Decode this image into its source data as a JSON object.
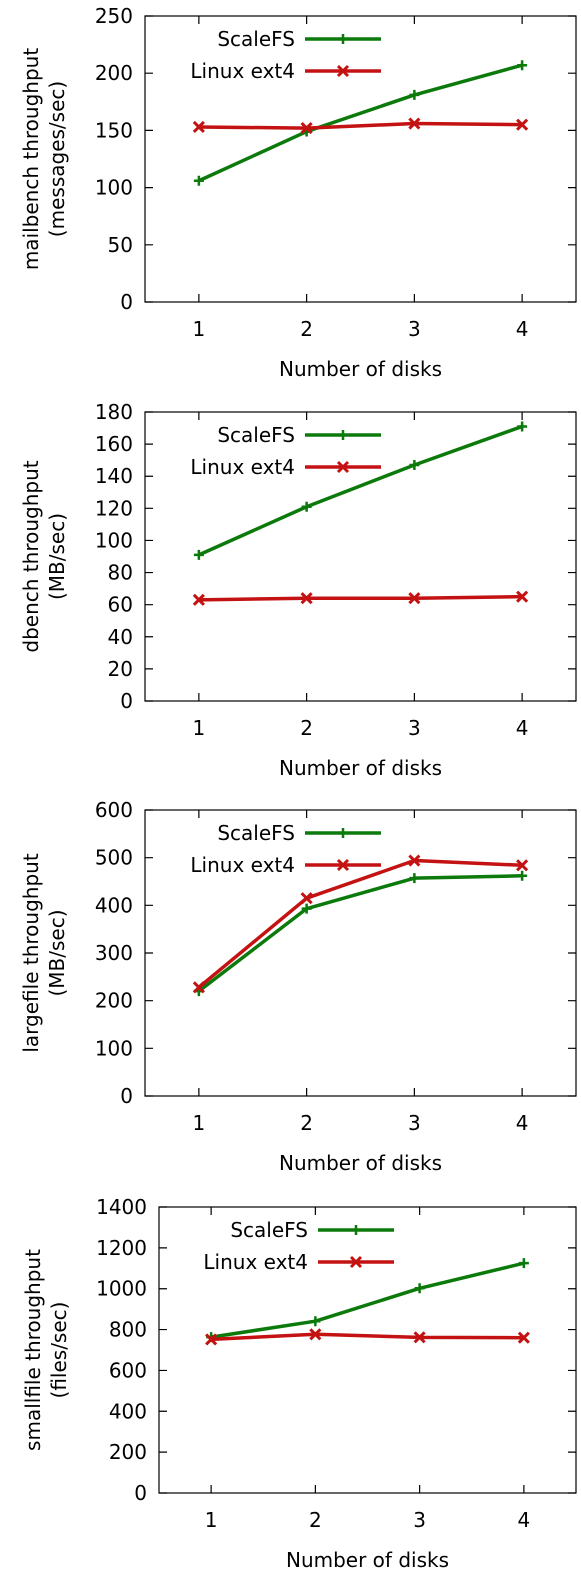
{
  "colors": {
    "scalefs": "#0b7a0b",
    "ext4": "#c41212"
  },
  "chart_data": [
    {
      "type": "line",
      "title": "",
      "xlabel": "Number of disks",
      "ylabel": [
        "mailbench throughput",
        "(messages/sec)"
      ],
      "x": [
        1,
        2,
        3,
        4
      ],
      "xlim": [
        0.5,
        4.5
      ],
      "ylim": [
        0,
        250
      ],
      "yticks": [
        0,
        50,
        100,
        150,
        200,
        250
      ],
      "grid": false,
      "legend": "top-left",
      "series": [
        {
          "name": "ScaleFS",
          "values": [
            106,
            149,
            181,
            207
          ],
          "marker": "plus"
        },
        {
          "name": "Linux ext4",
          "values": [
            153,
            152,
            156,
            155
          ],
          "marker": "cross"
        }
      ]
    },
    {
      "type": "line",
      "title": "",
      "xlabel": "Number of disks",
      "ylabel": [
        "dbench throughput",
        "(MB/sec)"
      ],
      "x": [
        1,
        2,
        3,
        4
      ],
      "xlim": [
        0.5,
        4.5
      ],
      "ylim": [
        0,
        180
      ],
      "yticks": [
        0,
        20,
        40,
        60,
        80,
        100,
        120,
        140,
        160,
        180
      ],
      "grid": false,
      "legend": "top-left",
      "series": [
        {
          "name": "ScaleFS",
          "values": [
            91,
            121,
            147,
            171
          ],
          "marker": "plus"
        },
        {
          "name": "Linux ext4",
          "values": [
            63,
            64,
            64,
            65
          ],
          "marker": "cross"
        }
      ]
    },
    {
      "type": "line",
      "title": "",
      "xlabel": "Number of disks",
      "ylabel": [
        "largefile throughput",
        "(MB/sec)"
      ],
      "x": [
        1,
        2,
        3,
        4
      ],
      "xlim": [
        0.5,
        4.5
      ],
      "ylim": [
        0,
        600
      ],
      "yticks": [
        0,
        100,
        200,
        300,
        400,
        500,
        600
      ],
      "grid": false,
      "legend": "top-left",
      "series": [
        {
          "name": "ScaleFS",
          "values": [
            220,
            393,
            457,
            462
          ],
          "marker": "plus"
        },
        {
          "name": "Linux ext4",
          "values": [
            228,
            415,
            494,
            484
          ],
          "marker": "cross"
        }
      ]
    },
    {
      "type": "line",
      "title": "",
      "xlabel": "Number of disks",
      "ylabel": [
        "smallfile throughput",
        "(files/sec)"
      ],
      "x": [
        1,
        2,
        3,
        4
      ],
      "xlim": [
        0.5,
        4.5
      ],
      "ylim": [
        0,
        1400
      ],
      "yticks": [
        0,
        200,
        400,
        600,
        800,
        1000,
        1200,
        1400
      ],
      "grid": false,
      "legend": "top-left",
      "series": [
        {
          "name": "ScaleFS",
          "values": [
            763,
            841,
            1002,
            1125
          ],
          "marker": "plus"
        },
        {
          "name": "Linux ext4",
          "values": [
            752,
            777,
            762,
            760
          ],
          "marker": "cross"
        }
      ]
    }
  ]
}
